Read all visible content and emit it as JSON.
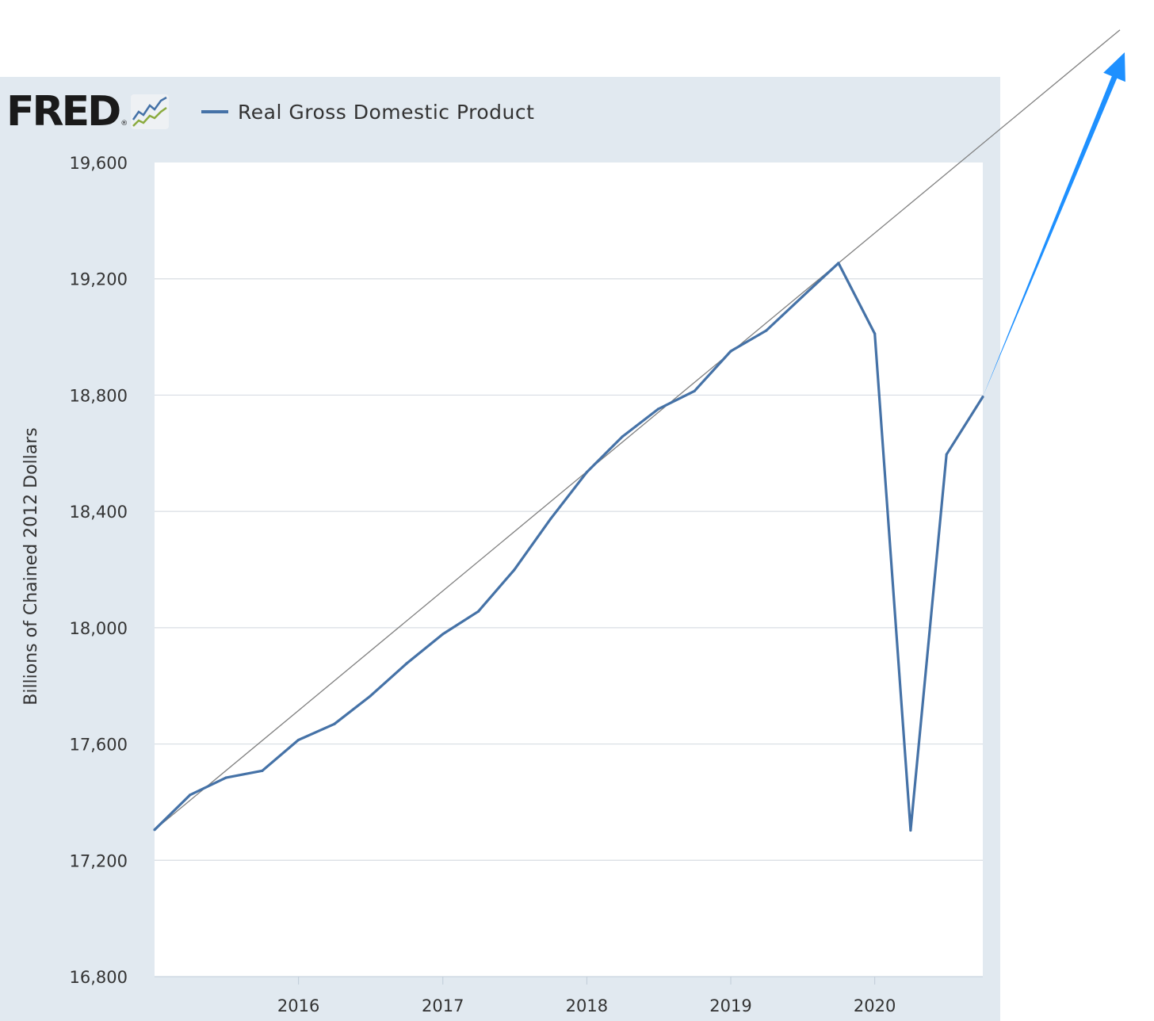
{
  "logo": {
    "wordmark": "FRED",
    "registered": "®",
    "icon": "line-graph-icon"
  },
  "legend": {
    "series_name": "Real Gross Domestic Product"
  },
  "colors": {
    "series": "#4572a7",
    "trend": "#808080",
    "arrow": "#1e90ff",
    "panel": "#e1e9f0",
    "grid": "#d8dde3"
  },
  "chart_data": {
    "type": "line",
    "title": "",
    "xlabel": "",
    "ylabel": "Billions of Chained 2012 Dollars",
    "ylim": [
      16800,
      19600
    ],
    "yticks": [
      16800,
      17200,
      17600,
      18000,
      18400,
      18800,
      19200,
      19600
    ],
    "ytick_labels": [
      "16,800",
      "17,200",
      "17,600",
      "18,000",
      "18,400",
      "18,800",
      "19,200",
      "19,600"
    ],
    "xlim": [
      "2015-01-01",
      "2020-10-01"
    ],
    "xticks": [
      "2016-01-01",
      "2017-01-01",
      "2018-01-01",
      "2019-01-01",
      "2020-01-01"
    ],
    "xtick_labels": [
      "2016",
      "2017",
      "2018",
      "2019",
      "2020"
    ],
    "grid": true,
    "legend_position": "top-left",
    "series": [
      {
        "name": "Real Gross Domestic Product",
        "x": [
          "2015-01-01",
          "2015-04-01",
          "2015-07-01",
          "2015-10-01",
          "2016-01-01",
          "2016-04-01",
          "2016-07-01",
          "2016-10-01",
          "2017-01-01",
          "2017-04-01",
          "2017-07-01",
          "2017-10-01",
          "2018-01-01",
          "2018-04-01",
          "2018-07-01",
          "2018-10-01",
          "2019-01-01",
          "2019-04-01",
          "2019-07-01",
          "2019-10-01",
          "2020-01-01",
          "2020-04-01",
          "2020-07-01",
          "2020-10-01"
        ],
        "values": [
          17305,
          17425,
          17484,
          17508,
          17614,
          17669,
          17765,
          17877,
          17978,
          18056,
          18199,
          18374,
          18535,
          18657,
          18752,
          18814,
          18951,
          19022,
          19138,
          19254,
          19011,
          17303,
          18596,
          18794
        ]
      }
    ],
    "annotations": [
      {
        "type": "trend-line",
        "from": {
          "x": "2015-01-01",
          "y": 17305
        },
        "to": {
          "x": "2019-10-01",
          "y": 19254
        }
      },
      {
        "type": "arrow",
        "from": {
          "x": "2020-10-01",
          "y": 18794
        }
      }
    ]
  }
}
